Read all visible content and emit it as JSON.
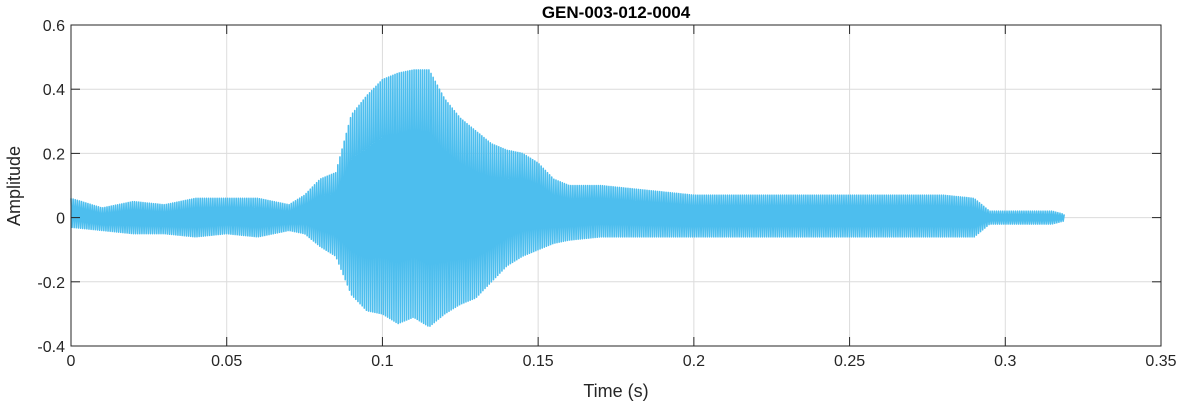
{
  "chart_data": {
    "type": "line",
    "title": "GEN-003-012-0004",
    "xlabel": "Time (s)",
    "ylabel": "Amplitude",
    "xlim": [
      0,
      0.35
    ],
    "ylim": [
      -0.4,
      0.6
    ],
    "xticks": [
      0,
      0.05,
      0.1,
      0.15,
      0.2,
      0.25,
      0.3,
      0.35
    ],
    "xtick_labels": [
      "0",
      "0.05",
      "0.1",
      "0.15",
      "0.2",
      "0.25",
      "0.3",
      "0.35"
    ],
    "yticks": [
      -0.4,
      -0.2,
      0,
      0.2,
      0.4,
      0.6
    ],
    "ytick_labels": [
      "-0.4",
      "-0.2",
      "0",
      "0.2",
      "0.4",
      "0.6"
    ],
    "grid": true,
    "line_color": "#4DBEEE",
    "series": [
      {
        "x": [
          0,
          0.01,
          0.02,
          0.03,
          0.04,
          0.05,
          0.06,
          0.07,
          0.075,
          0.08,
          0.085,
          0.09,
          0.095,
          0.1,
          0.105,
          0.11,
          0.115,
          0.12,
          0.125,
          0.13,
          0.135,
          0.14,
          0.145,
          0.15,
          0.155,
          0.16,
          0.17,
          0.18,
          0.19,
          0.2,
          0.21,
          0.22,
          0.23,
          0.24,
          0.25,
          0.26,
          0.27,
          0.28,
          0.29,
          0.295,
          0.3,
          0.305,
          0.31,
          0.315,
          0.319
        ],
        "upper": [
          0.06,
          0.03,
          0.05,
          0.04,
          0.06,
          0.06,
          0.06,
          0.04,
          0.07,
          0.12,
          0.14,
          0.32,
          0.38,
          0.43,
          0.45,
          0.46,
          0.46,
          0.37,
          0.31,
          0.27,
          0.23,
          0.21,
          0.2,
          0.17,
          0.12,
          0.1,
          0.1,
          0.09,
          0.08,
          0.07,
          0.07,
          0.07,
          0.07,
          0.07,
          0.07,
          0.07,
          0.07,
          0.07,
          0.06,
          0.02,
          0.02,
          0.02,
          0.02,
          0.02,
          0.01
        ],
        "lower": [
          -0.03,
          -0.04,
          -0.05,
          -0.05,
          -0.06,
          -0.05,
          -0.06,
          -0.04,
          -0.05,
          -0.09,
          -0.12,
          -0.24,
          -0.29,
          -0.3,
          -0.33,
          -0.31,
          -0.34,
          -0.3,
          -0.27,
          -0.25,
          -0.2,
          -0.15,
          -0.12,
          -0.1,
          -0.08,
          -0.07,
          -0.06,
          -0.06,
          -0.06,
          -0.06,
          -0.06,
          -0.06,
          -0.06,
          -0.06,
          -0.06,
          -0.06,
          -0.06,
          -0.06,
          -0.06,
          -0.02,
          -0.02,
          -0.02,
          -0.02,
          -0.02,
          -0.01
        ]
      }
    ]
  }
}
